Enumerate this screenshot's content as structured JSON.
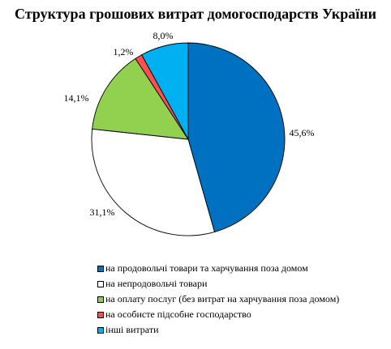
{
  "chart_data": {
    "type": "pie",
    "title": "Структура грошових витрат домогосподарств України",
    "categories": [
      "на продовольчі товари та харчування поза домом",
      "на непродовольчі товари",
      "на оплату послуг (без витрат на харчування поза домом)",
      "на особисте підсобне господарство",
      "інші витрати"
    ],
    "values": [
      45.6,
      31.1,
      14.1,
      1.2,
      8.0
    ],
    "labels": [
      "45,6%",
      "31,1%",
      "14,1%",
      "1,2%",
      "8,0%"
    ],
    "colors": [
      "#0070C0",
      "#FFFFFF",
      "#92D050",
      "#FF5050",
      "#00B0F0"
    ],
    "legend_position": "bottom",
    "start_angle": "12 o'clock",
    "direction": "clockwise"
  }
}
